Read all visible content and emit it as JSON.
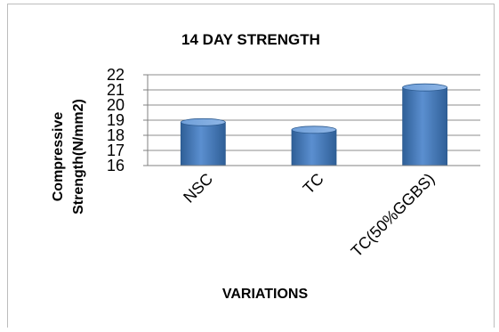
{
  "chart_data": {
    "type": "bar",
    "title": "14 DAY STRENGTH",
    "xlabel": "VARIATIONS",
    "ylabel_lines": [
      "Compressive",
      "Strength(N/mm2)"
    ],
    "categories": [
      "NSC",
      "TC",
      "TC(50%GGBS)"
    ],
    "values": [
      19.1,
      18.6,
      21.4
    ],
    "ylim": [
      16,
      22
    ],
    "yticks": [
      16,
      17,
      18,
      19,
      20,
      21,
      22
    ],
    "grid": true,
    "bar_color": "#4f81bd",
    "bar_dark_color": "#2c5a8f"
  }
}
